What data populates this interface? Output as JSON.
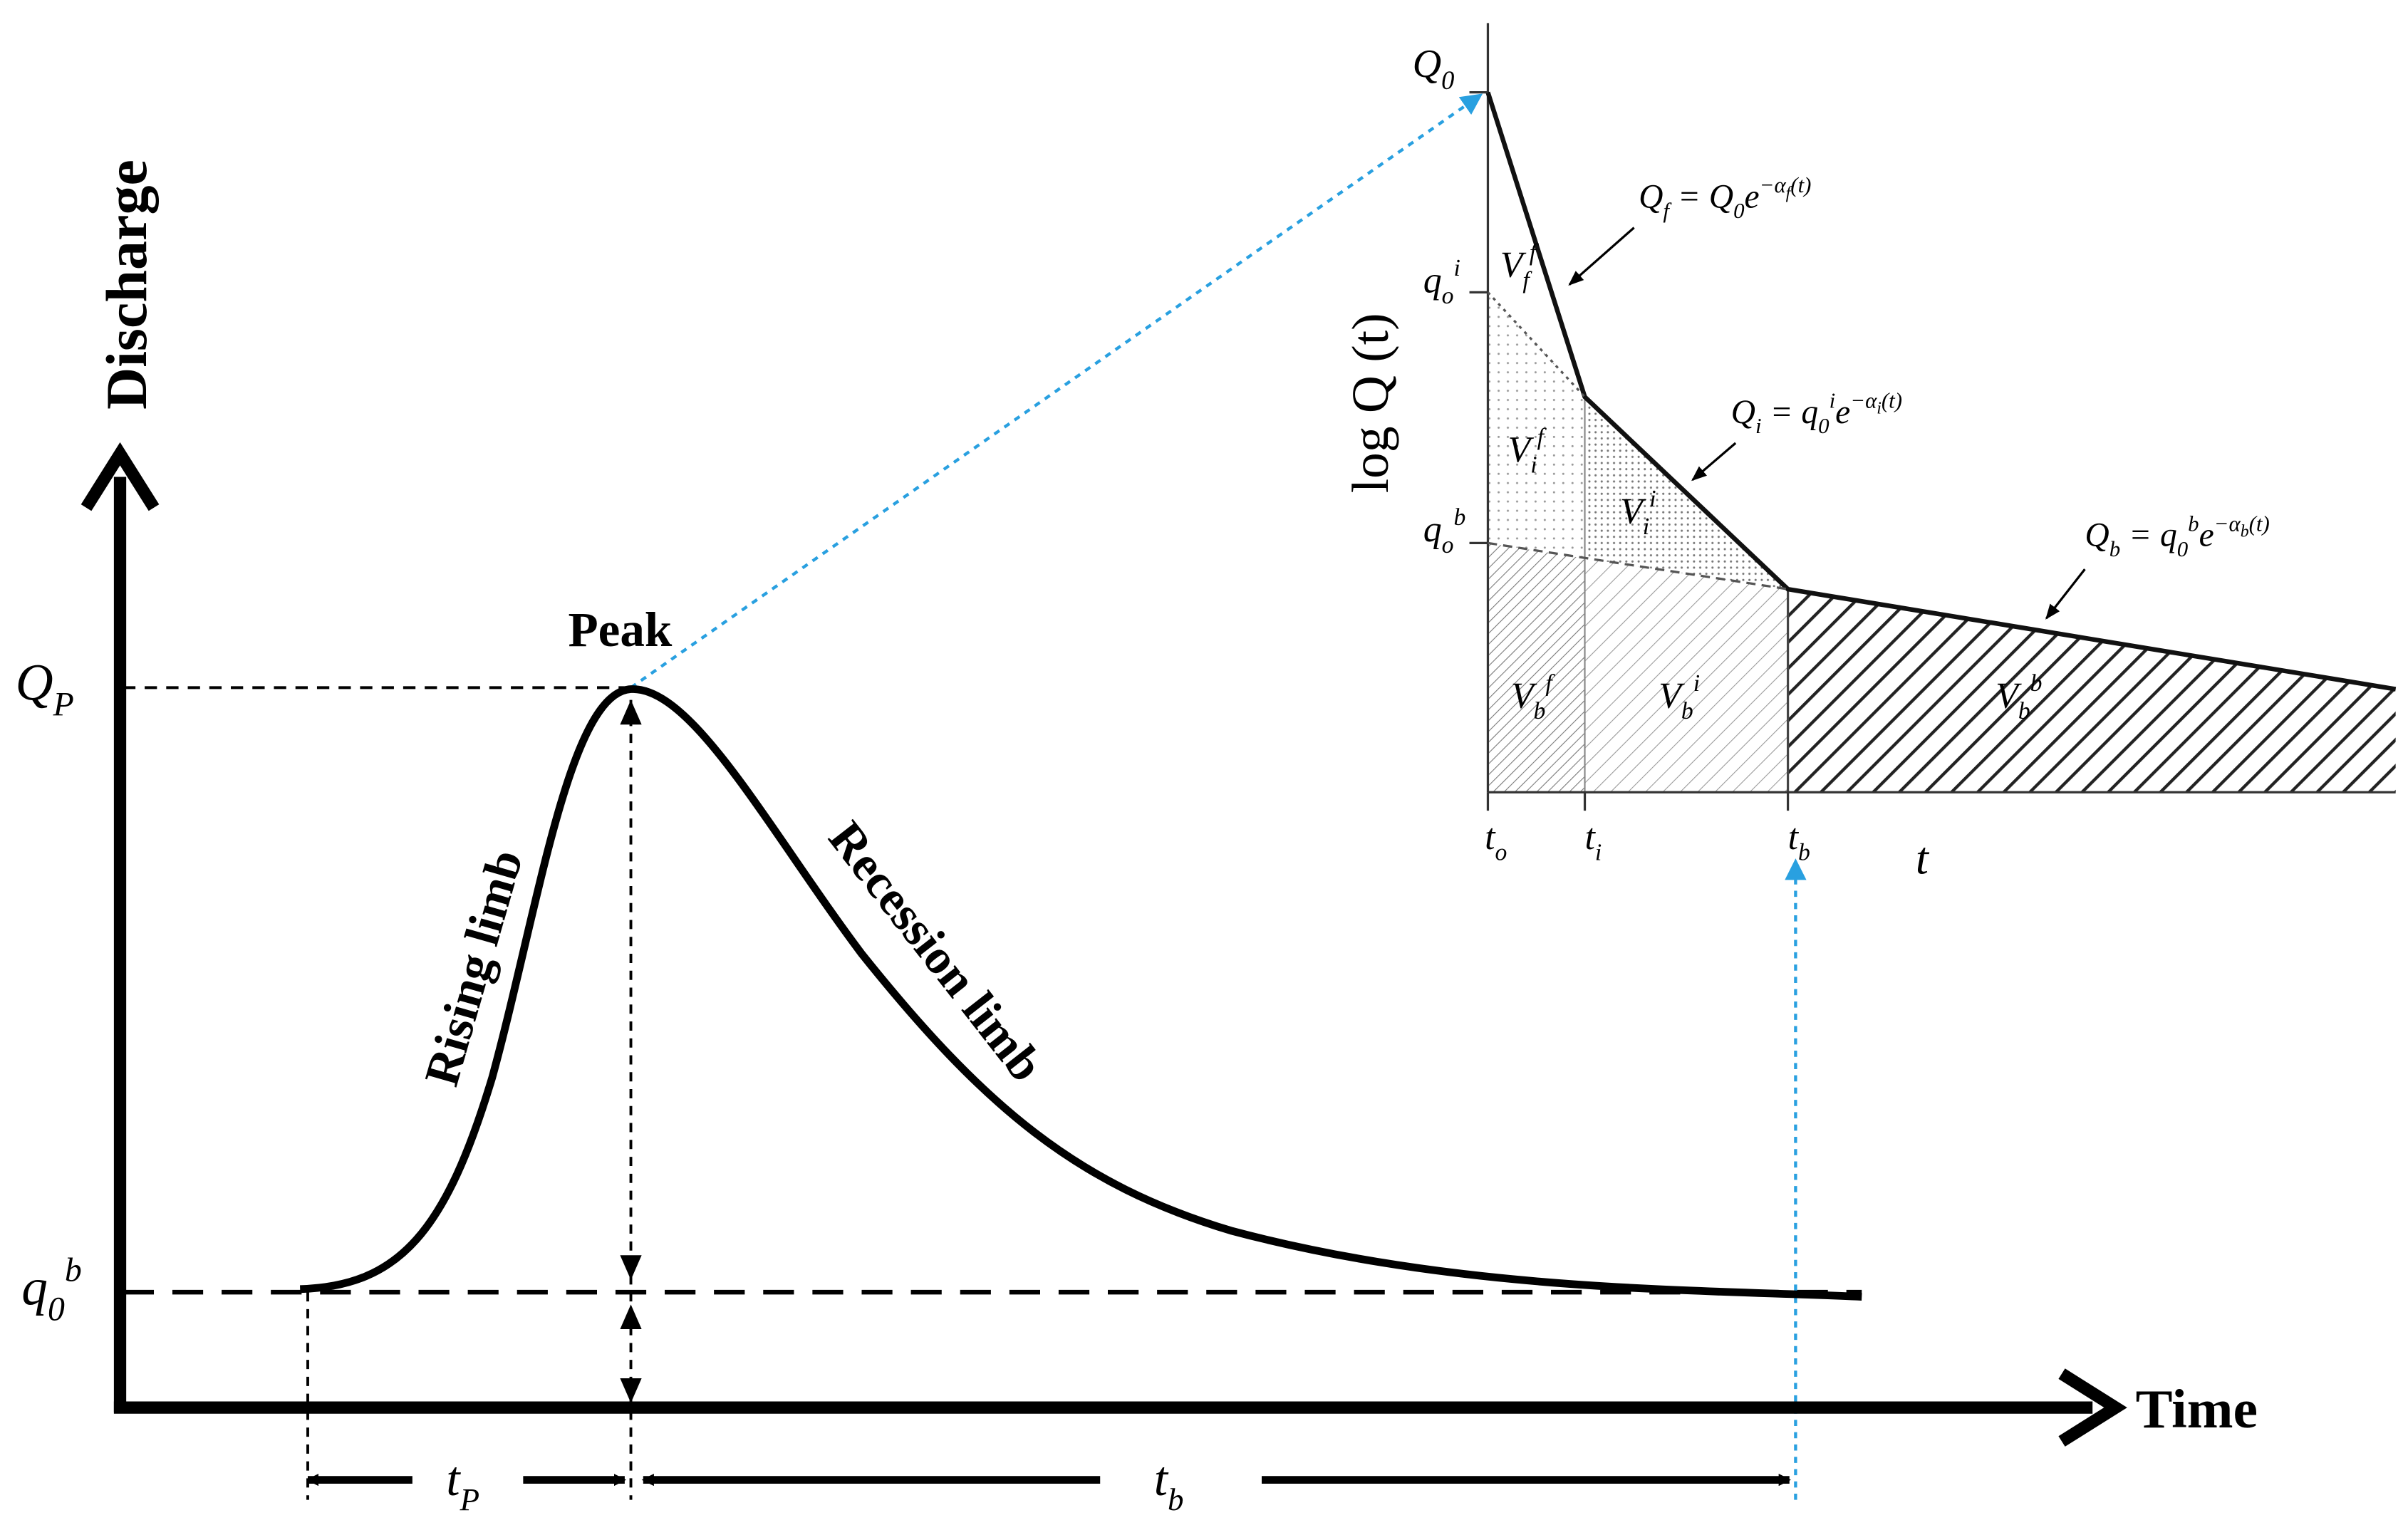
{
  "main": {
    "y_axis_label": "Discharge",
    "x_axis_label": "Time",
    "peak": "Peak",
    "rising": "Rising limb",
    "recession": "Recession limb",
    "peak_discharge": {
      "segments": [
        {
          "n": "Q"
        },
        {
          "sub": "P"
        }
      ]
    },
    "base_discharge": {
      "segments": [
        {
          "n": "q"
        },
        {
          "sub": "0"
        },
        {
          "sup": "b"
        }
      ]
    },
    "time_to_peak": {
      "segments": [
        {
          "n": "t"
        },
        {
          "sub": "P"
        }
      ]
    },
    "base_time": {
      "segments": [
        {
          "n": "t"
        },
        {
          "sub": "b"
        }
      ]
    }
  },
  "inset": {
    "y_axis_label": "log Q (t)",
    "x_axis_label": "t",
    "q0": {
      "segments": [
        {
          "n": "Q"
        },
        {
          "sub": "0"
        }
      ]
    },
    "qi": {
      "segments": [
        {
          "n": "q"
        },
        {
          "sub": "o"
        },
        {
          "sup": "i"
        }
      ]
    },
    "qb": {
      "segments": [
        {
          "n": "q"
        },
        {
          "sub": "o"
        },
        {
          "sup": "b"
        }
      ]
    },
    "eq_f": {
      "segments": [
        {
          "n": "Q"
        },
        {
          "sub": "f"
        },
        {
          "n": " = Q"
        },
        {
          "sub": "0"
        },
        {
          "n": "e"
        },
        {
          "sup": "−α"
        },
        {
          "supsub": "f"
        },
        {
          "sup": "(t)"
        }
      ]
    },
    "eq_i": {
      "segments": [
        {
          "n": "Q"
        },
        {
          "sub": "i"
        },
        {
          "n": " = q"
        },
        {
          "sub": "0"
        },
        {
          "sup": "i"
        },
        {
          "n": "e"
        },
        {
          "sup": "−α"
        },
        {
          "supsub": "i"
        },
        {
          "sup": "(t)"
        }
      ]
    },
    "eq_b": {
      "segments": [
        {
          "n": "Q"
        },
        {
          "sub": "b"
        },
        {
          "n": " = q"
        },
        {
          "sub": "0"
        },
        {
          "sup": "b"
        },
        {
          "n": "e"
        },
        {
          "sup": "−α"
        },
        {
          "supsub": "b"
        },
        {
          "sup": "(t)"
        }
      ]
    },
    "v_ff": {
      "segments": [
        {
          "n": "V"
        },
        {
          "sub": "f"
        },
        {
          "sup": "f"
        }
      ]
    },
    "v_if": {
      "segments": [
        {
          "n": "V"
        },
        {
          "sub": "i"
        },
        {
          "sup": "f"
        }
      ]
    },
    "v_ii": {
      "segments": [
        {
          "n": "V"
        },
        {
          "sub": "i"
        },
        {
          "sup": "i"
        }
      ]
    },
    "v_bf": {
      "segments": [
        {
          "n": "V"
        },
        {
          "sub": "b"
        },
        {
          "sup": "f"
        }
      ]
    },
    "v_bi": {
      "segments": [
        {
          "n": "V"
        },
        {
          "sub": "b"
        },
        {
          "sup": "i"
        }
      ]
    },
    "v_bb": {
      "segments": [
        {
          "n": "V"
        },
        {
          "sub": "b"
        },
        {
          "sup": "b"
        }
      ]
    },
    "t_o": {
      "segments": [
        {
          "n": "t"
        },
        {
          "sub": "o"
        }
      ]
    },
    "t_i": {
      "segments": [
        {
          "n": "t"
        },
        {
          "sub": "i"
        }
      ]
    },
    "t_b": {
      "segments": [
        {
          "n": "t"
        },
        {
          "sub": "b"
        }
      ]
    }
  }
}
